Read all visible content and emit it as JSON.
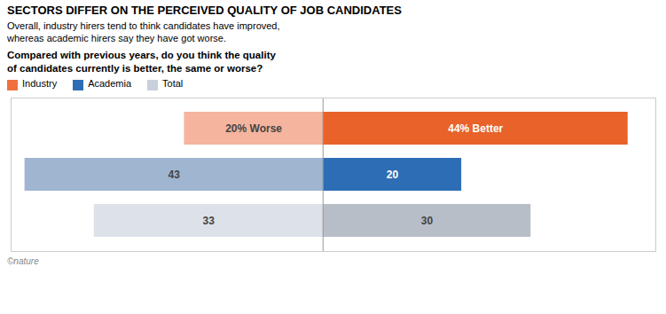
{
  "chart_data": {
    "type": "bar",
    "orientation": "horizontal",
    "title": "SECTORS DIFFER ON THE PERCEIVED QUALITY OF JOB CANDIDATES",
    "subtitle": "Overall, industry hirers tend to think candidates have improved,\nwhereas academic hirers say they have got worse.",
    "annotations": [
      "Compared with previous years, do you think the quality\nof candidates currently is better, the same or worse?",
      "©nature"
    ],
    "categories": [
      "Industry",
      "Academia",
      "Total"
    ],
    "colors": [
      "#f07040",
      "#2d6db5",
      "#c8d0dc"
    ],
    "legend": "top",
    "data_labels": true,
    "tick_labels": false,
    "grid": false,
    "xlim": [
      -45,
      48
    ],
    "series": [
      {
        "name": "Worse",
        "colors": [
          "#f5b49e",
          "#9fb5d0",
          "#dde1e8"
        ],
        "values": [
          20,
          43,
          33
        ],
        "value_labels": [
          "20% Worse",
          "43",
          "33"
        ]
      },
      {
        "name": "Better",
        "colors": [
          "#e8622a",
          "#2d6db5",
          "#b8bec8"
        ],
        "values": [
          44,
          20,
          30
        ],
        "value_labels": [
          "44% Better",
          "20",
          "30"
        ]
      }
    ]
  }
}
